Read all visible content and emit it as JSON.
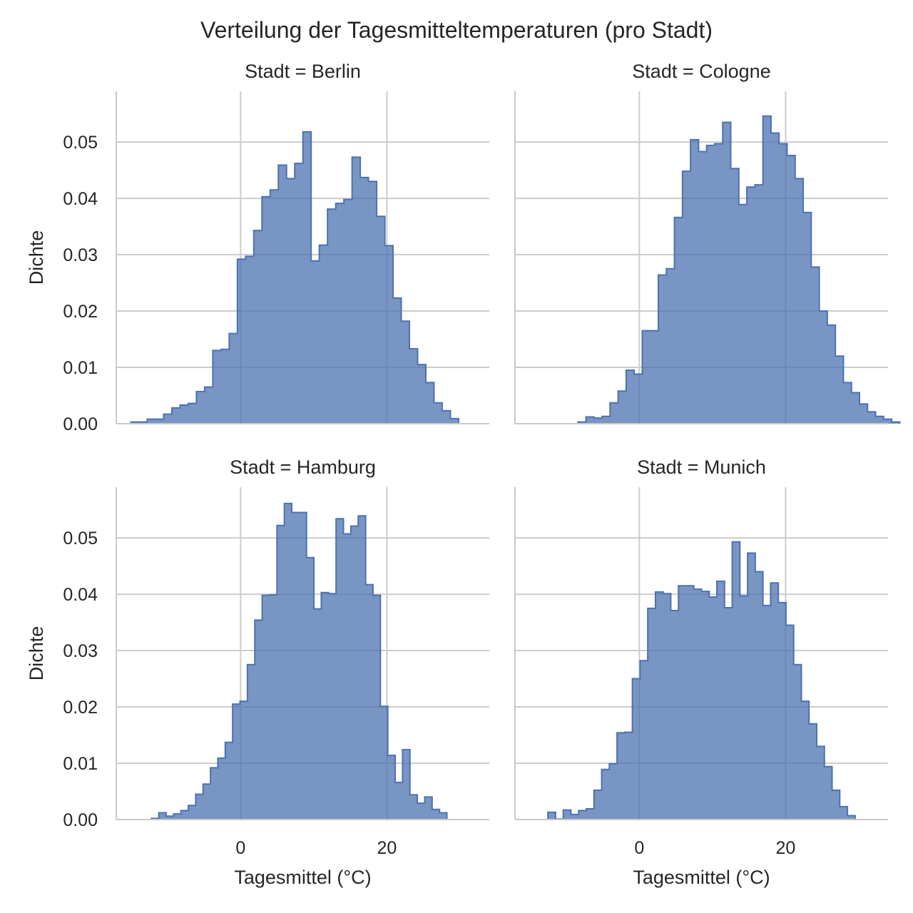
{
  "figure": {
    "title": "Verteilung der Tagesmitteltemperaturen (pro Stadt)",
    "fill_color": "#4c72b0",
    "grid_color": "#cccccc"
  },
  "chart_data": [
    {
      "type": "histogram",
      "title": "Stadt = Berlin",
      "xlabel": "",
      "ylabel": "Dichte",
      "xlim": [
        -17,
        34
      ],
      "ylim": [
        0,
        0.059
      ],
      "xticks": [
        0,
        20
      ],
      "yticks": [
        0.0,
        0.01,
        0.02,
        0.03,
        0.04,
        0.05
      ],
      "bin_start": -15.0,
      "bin_width": 1.12,
      "values": [
        0.0003,
        0.0003,
        0.0008,
        0.0008,
        0.0017,
        0.0028,
        0.0033,
        0.0036,
        0.0057,
        0.0065,
        0.013,
        0.0132,
        0.016,
        0.0292,
        0.0297,
        0.0343,
        0.0403,
        0.0415,
        0.0459,
        0.0435,
        0.0462,
        0.0518,
        0.0289,
        0.0317,
        0.0381,
        0.0391,
        0.0398,
        0.0473,
        0.0437,
        0.043,
        0.0368,
        0.0316,
        0.0223,
        0.0182,
        0.0133,
        0.0105,
        0.0073,
        0.0037,
        0.0023,
        0.0009
      ]
    },
    {
      "type": "histogram",
      "title": "Stadt = Cologne",
      "xlabel": "",
      "ylabel": "",
      "xlim": [
        -17,
        34
      ],
      "ylim": [
        0,
        0.059
      ],
      "xticks": [
        0,
        20
      ],
      "yticks": [
        0.0,
        0.01,
        0.02,
        0.03,
        0.04,
        0.05
      ],
      "bin_start": -8.4,
      "bin_width": 1.1,
      "values": [
        0.0003,
        0.0012,
        0.001,
        0.0013,
        0.0037,
        0.0058,
        0.0095,
        0.0088,
        0.0165,
        0.0165,
        0.0264,
        0.0275,
        0.0366,
        0.0448,
        0.0504,
        0.0483,
        0.0494,
        0.0497,
        0.0535,
        0.0453,
        0.0389,
        0.042,
        0.0424,
        0.0546,
        0.0516,
        0.0497,
        0.0476,
        0.0435,
        0.0375,
        0.0278,
        0.02,
        0.0175,
        0.012,
        0.0073,
        0.0055,
        0.0035,
        0.0021,
        0.0013,
        0.0008,
        0.0003
      ]
    },
    {
      "type": "histogram",
      "title": "Stadt = Hamburg",
      "xlabel": "Tagesmittel (°C)",
      "ylabel": "Dichte",
      "xlim": [
        -17,
        34
      ],
      "ylim": [
        0,
        0.059
      ],
      "xticks": [
        0,
        20
      ],
      "yticks": [
        0.0,
        0.01,
        0.02,
        0.03,
        0.04,
        0.05
      ],
      "bin_start": -12.2,
      "bin_width": 1.01,
      "values": [
        0.0002,
        0.0012,
        0.0006,
        0.001,
        0.0016,
        0.0025,
        0.0045,
        0.0063,
        0.0092,
        0.0109,
        0.0137,
        0.0205,
        0.021,
        0.0275,
        0.0354,
        0.0398,
        0.0399,
        0.0522,
        0.0561,
        0.0545,
        0.0545,
        0.0465,
        0.0374,
        0.0403,
        0.0401,
        0.0534,
        0.0507,
        0.0521,
        0.0539,
        0.0417,
        0.0398,
        0.0201,
        0.0114,
        0.0066,
        0.0124,
        0.0044,
        0.0029,
        0.004,
        0.0018,
        0.0012
      ]
    },
    {
      "type": "histogram",
      "title": "Stadt = Munich",
      "xlabel": "Tagesmittel (°C)",
      "ylabel": "",
      "xlim": [
        -17,
        34
      ],
      "ylim": [
        0,
        0.059
      ],
      "xticks": [
        0,
        20
      ],
      "yticks": [
        0.0,
        0.01,
        0.02,
        0.03,
        0.04,
        0.05
      ],
      "bin_start": -12.5,
      "bin_width": 1.05,
      "values": [
        0.0013,
        0.0001,
        0.0017,
        0.0009,
        0.0016,
        0.0019,
        0.0052,
        0.0089,
        0.0099,
        0.0154,
        0.0155,
        0.025,
        0.0282,
        0.0375,
        0.0404,
        0.0401,
        0.0371,
        0.0415,
        0.0415,
        0.0409,
        0.0405,
        0.0395,
        0.0423,
        0.0376,
        0.0493,
        0.0397,
        0.0473,
        0.044,
        0.038,
        0.042,
        0.0385,
        0.0345,
        0.0275,
        0.021,
        0.017,
        0.013,
        0.0094,
        0.0052,
        0.0023,
        0.0007
      ]
    }
  ]
}
